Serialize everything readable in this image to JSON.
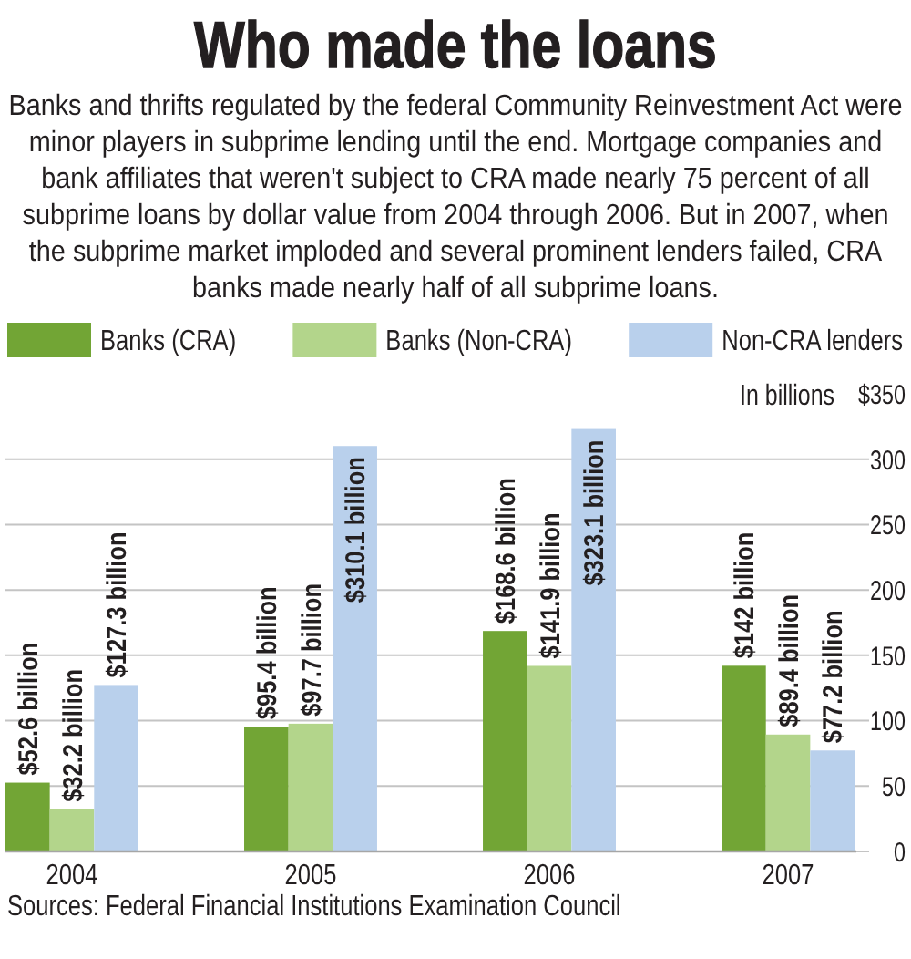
{
  "chart_data": {
    "type": "bar",
    "title": "Who made the loans",
    "subtitle": "Banks and thrifts regulated by the federal Community Reinvestment Act were minor players in subprime lending until the end. Mortgage companies and bank affiliates that weren't subject to CRA made nearly 75 percent of all subprime loans by dollar value from 2004 through 2006. But in 2007, when the subprime market imploded and several prominent lenders failed, CRA banks made nearly half of all subprime loans.",
    "categories": [
      "2004",
      "2005",
      "2006",
      "2007"
    ],
    "series": [
      {
        "name": "Banks (CRA)",
        "color": "#72a535",
        "values": [
          52.6,
          95.4,
          168.6,
          142
        ],
        "value_labels": [
          "$52.6 billion",
          "$95.4 billion",
          "$168.6 billion",
          "$142 billion"
        ]
      },
      {
        "name": "Banks (Non-CRA)",
        "color": "#b3d58b",
        "values": [
          32.2,
          97.7,
          141.9,
          89.4
        ],
        "value_labels": [
          "$32.2 billion",
          "$97.7 billion",
          "$141.9 billion",
          "$89.4 billion"
        ]
      },
      {
        "name": "Non-CRA lenders",
        "color": "#b9d0ec",
        "values": [
          127.3,
          310.1,
          323.1,
          77.2
        ],
        "value_labels": [
          "$127.3 billion",
          "$310.1 billion",
          "$323.1 billion",
          "$77.2 billion"
        ]
      }
    ],
    "ylabel": "In billions",
    "ylim": [
      0,
      350
    ],
    "yticks": [
      0,
      50,
      100,
      150,
      200,
      250,
      300,
      {
        "value": 350,
        "label": "$350"
      }
    ],
    "grid": "y",
    "legend": "top",
    "annotations": [
      "Sources: Federal Financial Institutions Examination Council"
    ]
  }
}
